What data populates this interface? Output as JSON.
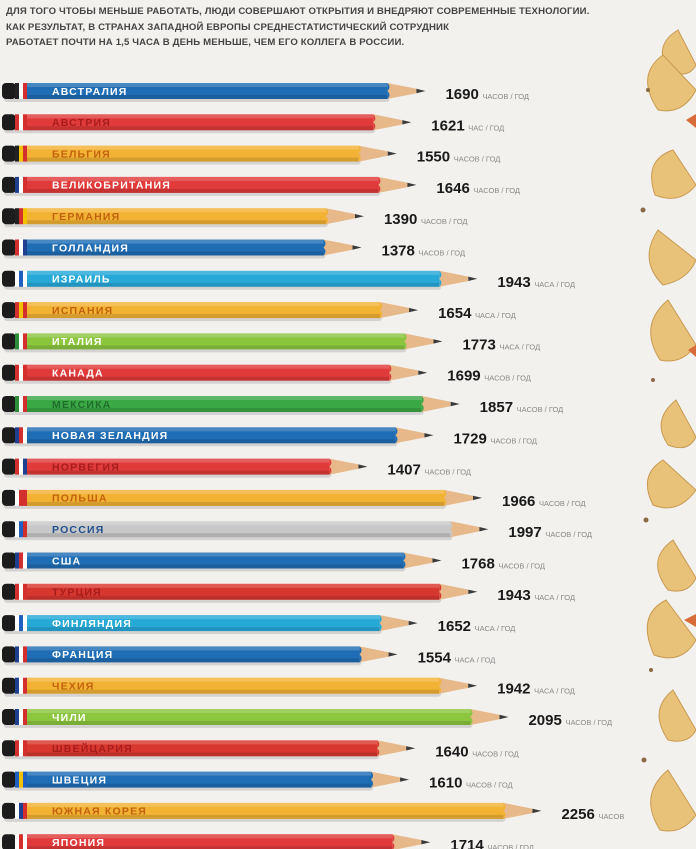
{
  "intro": {
    "line1": "ДЛЯ ТОГО ЧТОБЫ МЕНЬШЕ РАБОТАТЬ, ЛЮДИ СОВЕРШАЮТ ОТКРЫТИЯ И ВНЕДРЯЮТ СОВРЕМЕННЫЕ ТЕХНОЛОГИИ.",
    "line2": "КАК РЕЗУЛЬТАТ, В СТРАНАХ ЗАПАДНОЙ ЕВРОПЫ СРЕДНЕСТАТИСТИЧЕСКИЙ СОТРУДНИК",
    "line3": "РАБОТАЕТ ПОЧТИ НА 1,5 ЧАСА В ДЕНЬ МЕНЬШЕ, ЧЕМ ЕГО КОЛЛЕГА В РОССИИ."
  },
  "chart_data": {
    "type": "bar",
    "orientation": "horizontal",
    "categories": [
      "АВСТРАЛИЯ",
      "АВСТРИЯ",
      "БЕЛЬГИЯ",
      "ВЕЛИКОБРИТАНИЯ",
      "ГЕРМАНИЯ",
      "ГОЛЛАНДИЯ",
      "ИЗРАИЛЬ",
      "ИСПАНИЯ",
      "ИТАЛИЯ",
      "КАНАДА",
      "МЕКСИКА",
      "НОВАЯ ЗЕЛАНДИЯ",
      "НОРВЕГИЯ",
      "ПОЛЬША",
      "РОССИЯ",
      "США",
      "ТУРЦИЯ",
      "ФИНЛЯНДИЯ",
      "ФРАНЦИЯ",
      "ЧЕХИЯ",
      "ЧИЛИ",
      "ШВЕЙЦАРИЯ",
      "ШВЕЦИЯ",
      "ЮЖНАЯ КОРЕЯ",
      "ЯПОНИЯ"
    ],
    "values": [
      1690,
      1621,
      1550,
      1646,
      1390,
      1378,
      1943,
      1654,
      1773,
      1699,
      1857,
      1729,
      1407,
      1966,
      1997,
      1768,
      1943,
      1652,
      1554,
      1942,
      2095,
      1640,
      1610,
      2256,
      1714
    ],
    "units": [
      "ЧАСОВ / ГОД",
      "ЧАС / ГОД",
      "ЧАСОВ / ГОД",
      "ЧАСОВ / ГОД",
      "ЧАСОВ / ГОД",
      "ЧАСОВ / ГОД",
      "ЧАСА / ГОД",
      "ЧАСА / ГОД",
      "ЧАСА / ГОД",
      "ЧАСОВ / ГОД",
      "ЧАСОВ / ГОД",
      "ЧАСОВ / ГОД",
      "ЧАСОВ / ГОД",
      "ЧАСОВ / ГОД",
      "ЧАСОВ / ГОД",
      "ЧАСОВ / ГОД",
      "ЧАСА / ГОД",
      "ЧАСА / ГОД",
      "ЧАСА / ГОД",
      "ЧАСА / ГОД",
      "ЧАСОВ / ГОД",
      "ЧАСОВ / ГОД",
      "ЧАСОВ / ГОД",
      "ЧАСОВ",
      "ЧАСОВ / ГОД"
    ],
    "colors": [
      "#1f6db5",
      "#e03a3a",
      "#f2b233",
      "#e03a3a",
      "#f2b233",
      "#1f6db5",
      "#27a9d8",
      "#f2b233",
      "#8cc63f",
      "#e03a3a",
      "#3aa845",
      "#1f6db5",
      "#e03a3a",
      "#f2b233",
      "#c8c8c8",
      "#1f6db5",
      "#d8372f",
      "#27a9d8",
      "#1f6db5",
      "#f2b233",
      "#8cc63f",
      "#d8372f",
      "#1f6db5",
      "#f2b233",
      "#e03a3a"
    ],
    "label_colors": [
      "#ffffff",
      "#a81c1c",
      "#c2610f",
      "#ffffff",
      "#c2610f",
      "#ffffff",
      "#ffffff",
      "#c2610f",
      "#ffffff",
      "#ffffff",
      "#1f6d2a",
      "#ffffff",
      "#a81c1c",
      "#c2610f",
      "#1f4f8f",
      "#ffffff",
      "#a81c1c",
      "#ffffff",
      "#ffffff",
      "#c2610f",
      "#ffffff",
      "#a81c1c",
      "#ffffff",
      "#c2610f",
      "#ffffff"
    ],
    "title": "",
    "xlabel": "",
    "ylabel": ""
  }
}
